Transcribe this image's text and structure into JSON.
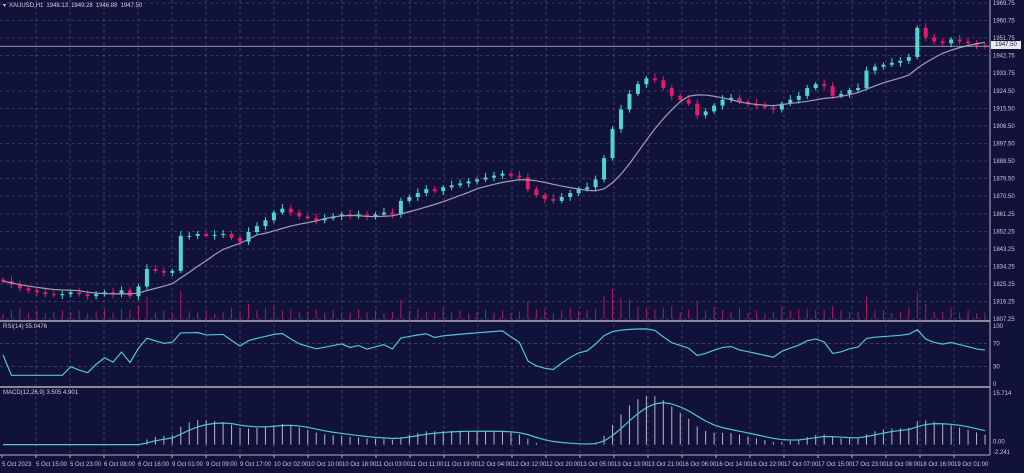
{
  "header": {
    "symbol": "XAUUSD,H1",
    "open": "1948.13",
    "high": "1949.28",
    "low": "1946.88",
    "close": "1947.50",
    "menu_icon": "triangle-down-icon"
  },
  "current_price": "1947.50",
  "colors": {
    "background": "#10123a",
    "bull": "#50d6d0",
    "bear": "#e8186a",
    "ma": "#a0a0b0",
    "grid": "#5a5c7a",
    "indicator": "#4fc8d0"
  },
  "rsi": {
    "label": "RSI(14) 55.0476",
    "levels": [
      "100",
      "70",
      "30",
      "0"
    ]
  },
  "macd": {
    "label": "MACD(12,26,9) 3.505 4.901",
    "axis": [
      "15.714",
      "0.00",
      "-2.241"
    ]
  },
  "chart_data": {
    "type": "candlestick",
    "title": "XAUUSD,H1",
    "price_ticks": [
      "1969.75",
      "1960.75",
      "1951.75",
      "1942.75",
      "1933.75",
      "1924.50",
      "1915.50",
      "1906.50",
      "1897.50",
      "1888.50",
      "1879.50",
      "1870.50",
      "1861.25",
      "1852.25",
      "1843.25",
      "1834.25",
      "1825.25",
      "1816.25",
      "1807.25"
    ],
    "ylim": [
      1807.25,
      1969.75
    ],
    "time_ticks": [
      "5 Oct 2023",
      "5 Oct 15:00",
      "5 Oct 23:00",
      "6 Oct 08:00",
      "6 Oct 16:00",
      "9 Oct 01:00",
      "9 Oct 09:00",
      "9 Oct 17:00",
      "10 Oct 02:00",
      "10 Oct 10:00",
      "10 Oct 18:00",
      "11 Oct 03:00",
      "11 Oct 11:00",
      "11 Oct 19:00",
      "12 Oct 04:00",
      "12 Oct 12:00",
      "12 Oct 20:00",
      "13 Oct 05:00",
      "13 Oct 13:00",
      "13 Oct 21:00",
      "16 Oct 06:00",
      "16 Oct 14:00",
      "16 Oct 22:00",
      "17 Oct 07:00",
      "17 Oct 15:00",
      "17 Oct 23:00",
      "18 Oct 08:00",
      "18 Oct 16:00",
      "19 Oct 01:00"
    ],
    "closes": [
      1826.7,
      1825,
      1823,
      1822,
      1821,
      1820,
      1819.5,
      1820,
      1821,
      1820,
      1819,
      1820,
      1821,
      1820,
      1822,
      1819,
      1824,
      1833,
      1832,
      1831,
      1832,
      1850,
      1850,
      1851,
      1850,
      1850.5,
      1851,
      1849,
      1847,
      1852,
      1855,
      1858,
      1862,
      1864,
      1862,
      1860,
      1859,
      1858,
      1859,
      1860,
      1861,
      1860,
      1861,
      1860,
      1861,
      1862,
      1861,
      1868,
      1870,
      1872,
      1874,
      1873,
      1875,
      1876,
      1877,
      1878,
      1879,
      1880,
      1881,
      1882,
      1881,
      1880,
      1874,
      1871,
      1869,
      1868,
      1870,
      1872,
      1874,
      1875,
      1879,
      1890,
      1905,
      1915,
      1923,
      1928,
      1931,
      1930,
      1926,
      1922,
      1920,
      1918,
      1912,
      1914,
      1917,
      1920,
      1921,
      1919,
      1918,
      1917,
      1916,
      1915,
      1918,
      1920,
      1922,
      1926,
      1928,
      1927,
      1922,
      1923,
      1925,
      1926,
      1935,
      1937,
      1938,
      1939,
      1940,
      1942,
      1957,
      1952,
      1950,
      1949,
      1951,
      1950,
      1949,
      1948,
      1947.5
    ],
    "grid": true
  }
}
